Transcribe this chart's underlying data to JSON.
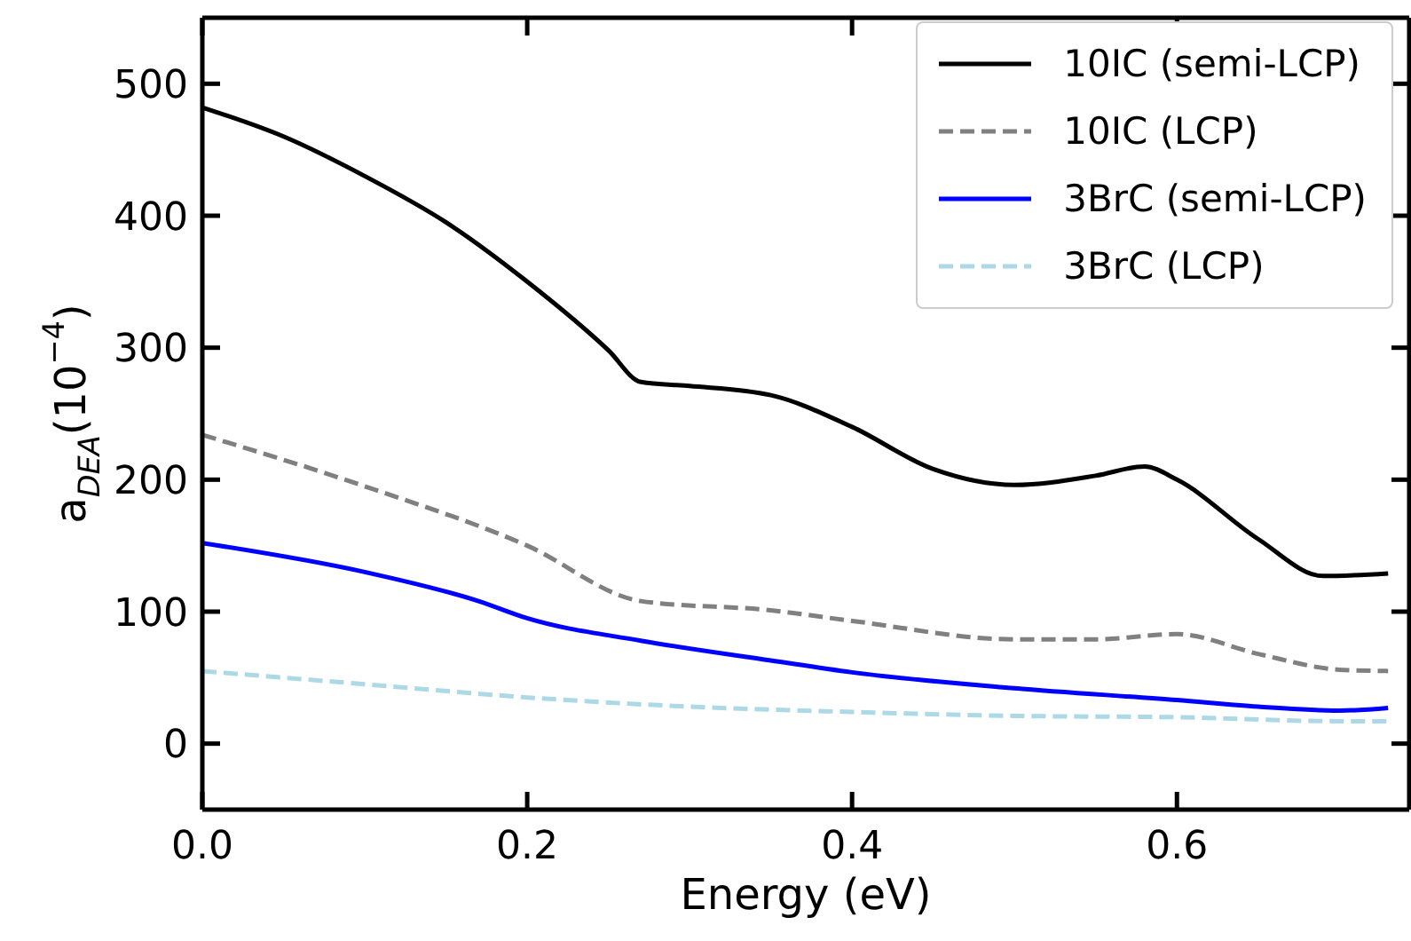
{
  "chart_data": {
    "type": "line",
    "xlabel": "Energy (eV)",
    "ylabel": "a$_{DEA}$(10$^{−4}$)",
    "xlim": [
      0,
      0.743
    ],
    "xticks": [
      {
        "value": 0,
        "label": "0.0"
      },
      0.2,
      0.4,
      0.6
    ],
    "ylim": [
      -50,
      550
    ],
    "yticks": [
      0,
      100,
      200,
      300,
      400,
      500
    ],
    "legend": "top right",
    "marker": "none",
    "series": [
      {
        "name": "10IC (semi-LCP)",
        "color": "#000000",
        "line_style": "solid",
        "x": [
          0,
          0.05,
          0.1,
          0.15,
          0.2,
          0.25,
          0.27,
          0.3,
          0.35,
          0.4,
          0.45,
          0.5,
          0.55,
          0.58,
          0.6,
          0.65,
          0.69,
          0.73
        ],
        "values": [
          482,
          460,
          430,
          395,
          350,
          298,
          274,
          271,
          264,
          240,
          208,
          196,
          203,
          210,
          200,
          155,
          127,
          129
        ]
      },
      {
        "name": "10IC (LCP)",
        "color": "#808080",
        "line_style": "dashed",
        "x": [
          0,
          0.1,
          0.2,
          0.27,
          0.35,
          0.4,
          0.5,
          0.55,
          0.6,
          0.65,
          0.7,
          0.73
        ],
        "values": [
          234,
          195,
          150,
          108,
          101,
          93,
          79,
          79,
          83,
          68,
          56,
          55
        ]
      },
      {
        "name": "3BrC (semi-LCP)",
        "color": "#0000ff",
        "line_style": "solid",
        "x": [
          0,
          0.1,
          0.17,
          0.2,
          0.27,
          0.35,
          0.4,
          0.5,
          0.6,
          0.65,
          0.7,
          0.73
        ],
        "values": [
          152,
          130,
          108,
          95,
          78,
          63,
          54,
          42,
          33,
          28,
          25,
          27
        ]
      },
      {
        "name": "3BrC (LCP)",
        "color": "#add8e6",
        "line_style": "dashed",
        "x": [
          0,
          0.1,
          0.2,
          0.3,
          0.4,
          0.5,
          0.6,
          0.7,
          0.73
        ],
        "values": [
          55,
          45,
          35,
          28,
          24,
          21,
          20,
          17,
          17
        ]
      }
    ]
  }
}
